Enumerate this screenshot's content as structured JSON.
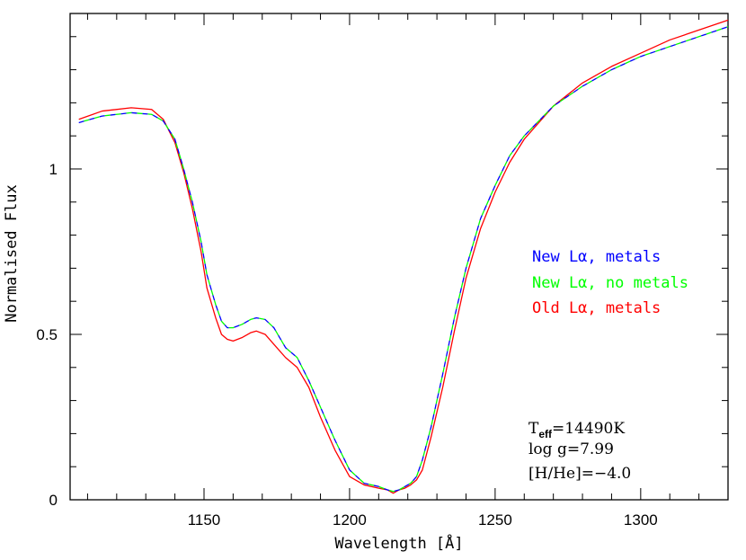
{
  "chart_data": {
    "type": "line",
    "xlabel": "Wavelength [Å]",
    "ylabel": "Normalised Flux",
    "xlim": [
      1104,
      1330
    ],
    "ylim": [
      0,
      1.47
    ],
    "x_ticks": [
      1150,
      1200,
      1250,
      1300
    ],
    "y_ticks": [
      0,
      0.5,
      1
    ],
    "x_tick_labels": [
      "1150",
      "1200",
      "1250",
      "1300"
    ],
    "y_tick_labels": [
      "0",
      "0.5",
      "1"
    ],
    "grid": false,
    "legend_position": "right",
    "series": [
      {
        "name": "New Lα, metals",
        "color": "#0000ff",
        "dash": "dashed",
        "x": [
          1107,
          1115,
          1125,
          1132,
          1136,
          1140,
          1143,
          1146,
          1149,
          1151,
          1154,
          1156,
          1158,
          1160,
          1163,
          1166,
          1168,
          1171,
          1174,
          1178,
          1182,
          1186,
          1190,
          1195,
          1200,
          1205,
          1210,
          1213,
          1215,
          1217,
          1219,
          1221,
          1223,
          1225,
          1228,
          1232,
          1236,
          1240,
          1245,
          1250,
          1255,
          1260,
          1270,
          1280,
          1290,
          1300,
          1310,
          1320,
          1330
        ],
        "y": [
          1.14,
          1.16,
          1.17,
          1.165,
          1.145,
          1.09,
          1.0,
          0.9,
          0.78,
          0.68,
          0.59,
          0.54,
          0.52,
          0.52,
          0.53,
          0.545,
          0.55,
          0.545,
          0.52,
          0.46,
          0.43,
          0.36,
          0.28,
          0.18,
          0.09,
          0.05,
          0.04,
          0.03,
          0.025,
          0.03,
          0.04,
          0.05,
          0.07,
          0.12,
          0.22,
          0.38,
          0.55,
          0.7,
          0.85,
          0.95,
          1.04,
          1.1,
          1.19,
          1.25,
          1.3,
          1.34,
          1.37,
          1.4,
          1.43
        ]
      },
      {
        "name": "New Lα, no metals",
        "color": "#00ff00",
        "dash": "dashed",
        "x": [
          1107,
          1115,
          1125,
          1132,
          1136,
          1140,
          1143,
          1146,
          1149,
          1151,
          1154,
          1156,
          1158,
          1160,
          1163,
          1166,
          1168,
          1171,
          1174,
          1178,
          1182,
          1186,
          1190,
          1195,
          1200,
          1205,
          1210,
          1213,
          1215,
          1217,
          1219,
          1221,
          1223,
          1225,
          1228,
          1232,
          1236,
          1240,
          1245,
          1250,
          1255,
          1260,
          1270,
          1280,
          1290,
          1300,
          1310,
          1320,
          1330
        ],
        "y": [
          1.14,
          1.16,
          1.17,
          1.165,
          1.145,
          1.09,
          1.0,
          0.9,
          0.78,
          0.68,
          0.59,
          0.54,
          0.52,
          0.52,
          0.53,
          0.545,
          0.55,
          0.545,
          0.52,
          0.46,
          0.43,
          0.36,
          0.28,
          0.18,
          0.09,
          0.05,
          0.04,
          0.03,
          0.025,
          0.03,
          0.04,
          0.05,
          0.07,
          0.12,
          0.22,
          0.38,
          0.55,
          0.7,
          0.85,
          0.95,
          1.04,
          1.1,
          1.19,
          1.25,
          1.3,
          1.34,
          1.37,
          1.4,
          1.43
        ]
      },
      {
        "name": "Old Lα, metals",
        "color": "#ff0000",
        "dash": "solid",
        "x": [
          1107,
          1115,
          1125,
          1132,
          1136,
          1140,
          1143,
          1146,
          1149,
          1151,
          1154,
          1156,
          1158,
          1160,
          1163,
          1166,
          1168,
          1171,
          1174,
          1178,
          1182,
          1186,
          1190,
          1195,
          1200,
          1205,
          1210,
          1213,
          1215,
          1217,
          1219,
          1221,
          1223,
          1225,
          1228,
          1232,
          1236,
          1240,
          1245,
          1250,
          1255,
          1260,
          1270,
          1280,
          1290,
          1300,
          1310,
          1320,
          1330
        ],
        "y": [
          1.15,
          1.175,
          1.185,
          1.18,
          1.15,
          1.08,
          0.99,
          0.88,
          0.75,
          0.64,
          0.55,
          0.5,
          0.485,
          0.48,
          0.49,
          0.505,
          0.51,
          0.5,
          0.47,
          0.43,
          0.4,
          0.34,
          0.25,
          0.15,
          0.07,
          0.045,
          0.035,
          0.03,
          0.02,
          0.03,
          0.035,
          0.045,
          0.06,
          0.09,
          0.19,
          0.34,
          0.51,
          0.67,
          0.82,
          0.93,
          1.02,
          1.09,
          1.19,
          1.26,
          1.31,
          1.35,
          1.39,
          1.42,
          1.45
        ]
      }
    ],
    "annotation": {
      "teff_prefix": "T",
      "teff_subscript": "eff",
      "teff_value": "=14490K",
      "logg": "log g=7.99",
      "hhe": "[H/He]=−4.0"
    }
  }
}
